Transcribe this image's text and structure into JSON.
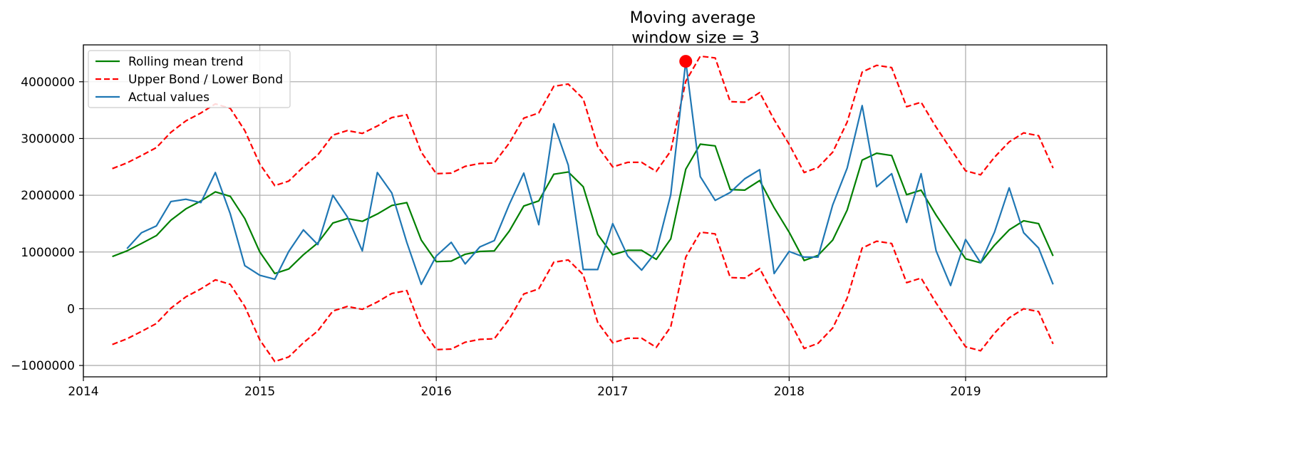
{
  "chart_data": {
    "type": "line",
    "title": "Moving average",
    "subtitle": "window size = 3",
    "xlabel": "",
    "ylabel": "",
    "xlim": [
      2014.0,
      2019.8
    ],
    "ylim": [
      -1200000,
      4650000
    ],
    "x_ticks": [
      2014,
      2015,
      2016,
      2017,
      2018,
      2019
    ],
    "x_tick_labels": [
      "2014",
      "2015",
      "2016",
      "2017",
      "2018",
      "2019"
    ],
    "y_ticks": [
      -1000000,
      0,
      1000000,
      2000000,
      3000000,
      4000000
    ],
    "y_tick_labels": [
      "−1000000",
      "0",
      "1000000",
      "2000000",
      "3000000",
      "4000000"
    ],
    "grid": true,
    "legend_position": "top-left",
    "x": [
      2014.164,
      2014.247,
      2014.329,
      2014.414,
      2014.496,
      2014.581,
      2014.666,
      2014.748,
      2014.833,
      2014.915,
      2015.0,
      2015.085,
      2015.164,
      2015.247,
      2015.329,
      2015.414,
      2015.496,
      2015.581,
      2015.666,
      2015.748,
      2015.833,
      2015.915,
      2016.0,
      2016.085,
      2016.164,
      2016.247,
      2016.329,
      2016.414,
      2016.496,
      2016.581,
      2016.666,
      2016.748,
      2016.833,
      2016.915,
      2017.0,
      2017.085,
      2017.164,
      2017.247,
      2017.329,
      2017.414,
      2017.496,
      2017.581,
      2017.666,
      2017.748,
      2017.833,
      2017.915,
      2018.0,
      2018.085,
      2018.164,
      2018.247,
      2018.329,
      2018.414,
      2018.496,
      2018.581,
      2018.666,
      2018.748,
      2018.833,
      2018.915,
      2019.0,
      2019.085,
      2019.164,
      2019.247,
      2019.329,
      2019.414,
      2019.496
    ],
    "series": [
      {
        "name": "Rolling mean trend",
        "color": "#008000",
        "style": "solid",
        "values": [
          920000,
          1020000,
          1150000,
          1290000,
          1560000,
          1760000,
          1900000,
          2060000,
          1980000,
          1590000,
          1000000,
          620000,
          700000,
          950000,
          1160000,
          1510000,
          1590000,
          1540000,
          1670000,
          1820000,
          1870000,
          1210000,
          830000,
          840000,
          960000,
          1010000,
          1020000,
          1370000,
          1810000,
          1900000,
          2370000,
          2410000,
          2150000,
          1310000,
          950000,
          1030000,
          1030000,
          870000,
          1230000,
          2460000,
          2900000,
          2870000,
          2100000,
          2090000,
          2260000,
          1780000,
          1350000,
          850000,
          940000,
          1210000,
          1740000,
          2620000,
          2740000,
          2700000,
          2010000,
          2090000,
          1650000,
          1270000,
          880000,
          810000,
          1120000,
          1390000,
          1550000,
          1500000,
          930000
        ]
      },
      {
        "name": "Upper Bond / Lower Bond",
        "color": "#ff0000",
        "style": "dashed",
        "values": [
          2470000,
          2570000,
          2700000,
          2840000,
          3110000,
          3310000,
          3450000,
          3610000,
          3530000,
          3140000,
          2550000,
          2170000,
          2250000,
          2500000,
          2710000,
          3060000,
          3140000,
          3090000,
          3220000,
          3370000,
          3420000,
          2760000,
          2380000,
          2390000,
          2510000,
          2560000,
          2570000,
          2920000,
          3360000,
          3450000,
          3920000,
          3960000,
          3700000,
          2860000,
          2500000,
          2580000,
          2580000,
          2420000,
          2780000,
          4010000,
          4450000,
          4420000,
          3650000,
          3640000,
          3810000,
          3330000,
          2900000,
          2400000,
          2490000,
          2760000,
          3290000,
          4170000,
          4290000,
          4250000,
          3560000,
          3640000,
          3200000,
          2820000,
          2430000,
          2360000,
          2670000,
          2940000,
          3100000,
          3050000,
          2480000
        ]
      },
      {
        "name": "Lower Bond",
        "color": "#ff0000",
        "style": "dashed",
        "values": [
          -630000,
          -530000,
          -400000,
          -260000,
          10000,
          210000,
          350000,
          510000,
          430000,
          40000,
          -550000,
          -930000,
          -850000,
          -600000,
          -390000,
          -40000,
          40000,
          -10000,
          120000,
          270000,
          320000,
          -340000,
          -720000,
          -710000,
          -590000,
          -540000,
          -530000,
          -180000,
          260000,
          350000,
          820000,
          860000,
          600000,
          -240000,
          -600000,
          -520000,
          -520000,
          -680000,
          -320000,
          910000,
          1350000,
          1320000,
          550000,
          540000,
          710000,
          230000,
          -200000,
          -700000,
          -610000,
          -340000,
          190000,
          1070000,
          1190000,
          1150000,
          460000,
          540000,
          100000,
          -280000,
          -670000,
          -740000,
          -430000,
          -160000,
          0,
          -50000,
          -620000
        ]
      },
      {
        "name": "Actual values",
        "color": "#1f77b4",
        "style": "solid",
        "values": [
          null,
          1060000,
          1340000,
          1460000,
          1890000,
          1930000,
          1870000,
          2400000,
          1670000,
          760000,
          590000,
          520000,
          1010000,
          1390000,
          1130000,
          2000000,
          1620000,
          1020000,
          2400000,
          2040000,
          1170000,
          430000,
          930000,
          1170000,
          790000,
          1090000,
          1200000,
          1840000,
          2390000,
          1480000,
          3260000,
          2530000,
          690000,
          690000,
          1500000,
          930000,
          680000,
          1010000,
          2010000,
          4360000,
          2330000,
          1910000,
          2050000,
          2290000,
          2450000,
          620000,
          1010000,
          910000,
          910000,
          1830000,
          2480000,
          3580000,
          2150000,
          2380000,
          1520000,
          2380000,
          1020000,
          410000,
          1220000,
          810000,
          1350000,
          2130000,
          1340000,
          1070000,
          430000
        ]
      }
    ],
    "anomaly": {
      "x": 2017.414,
      "y": 4360000,
      "color": "#ff0000"
    },
    "legend": [
      {
        "label": "Rolling mean trend",
        "color": "#008000",
        "style": "solid"
      },
      {
        "label": "Upper Bond / Lower Bond",
        "color": "#ff0000",
        "style": "dashed"
      },
      {
        "label": "Actual values",
        "color": "#1f77b4",
        "style": "solid"
      }
    ]
  }
}
